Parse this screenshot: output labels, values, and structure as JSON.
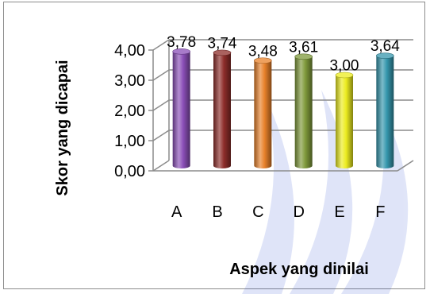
{
  "chart_data": {
    "type": "bar",
    "title": "",
    "xlabel": "Aspek yang dinilai",
    "ylabel": "Skor yang dicapai",
    "categories": [
      "A",
      "B",
      "C",
      "D",
      "E",
      "F"
    ],
    "values": [
      3.78,
      3.74,
      3.48,
      3.61,
      3.0,
      3.64
    ],
    "value_labels": [
      "3,78",
      "3,74",
      "3,48",
      "3,61",
      "3,00",
      "3,64"
    ],
    "y_ticks": [
      "0,00",
      "1,00",
      "2,00",
      "3,00",
      "4,00"
    ],
    "ylim": [
      0,
      4
    ],
    "grid": true,
    "legend": "none",
    "colors": [
      "#8b4fb8",
      "#8e2d2a",
      "#e8812a",
      "#7f9a3b",
      "#ecec1f",
      "#3597ad"
    ]
  }
}
